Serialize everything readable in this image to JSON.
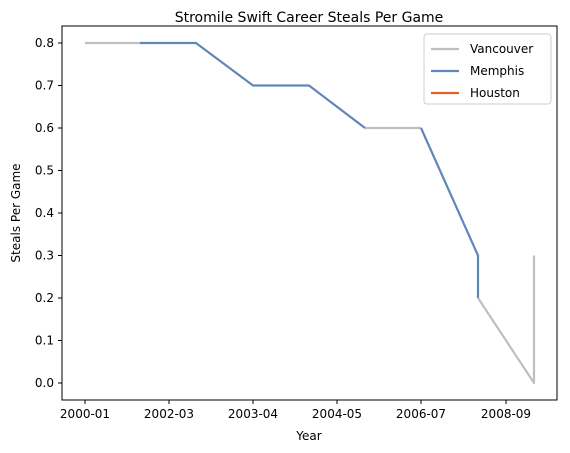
{
  "chart_data": {
    "type": "line",
    "title": "Stromile Swift Career Steals Per Game",
    "xlabel": "Year",
    "ylabel": "Steals Per Game",
    "x_ticks": [
      "2000-01",
      "2002-03",
      "2003-04",
      "2004-05",
      "2006-07",
      "2008-09"
    ],
    "y_ticks": [
      "0.0",
      "0.1",
      "0.2",
      "0.3",
      "0.4",
      "0.5",
      "0.6",
      "0.7",
      "0.8"
    ],
    "ylim": [
      -0.04,
      0.84
    ],
    "grid": false,
    "legend_position": "top-right",
    "series": [
      {
        "name": "Vancouver",
        "color": "#bfbfbf",
        "segments": [
          [
            [
              "2000-01",
              0.8
            ],
            [
              "2001-02",
              0.8
            ]
          ],
          [
            [
              "2004-05",
              0.6
            ],
            [
              "2005-06",
              0.6
            ]
          ],
          [
            [
              "2006-07 (b)",
              0.2
            ],
            [
              "2008-09",
              0.0
            ],
            [
              "2008-09",
              0.3
            ]
          ]
        ]
      },
      {
        "name": "Memphis",
        "color": "#5f87b8",
        "segments": [
          [
            [
              "2001-02",
              0.8
            ],
            [
              "2002-03",
              0.8
            ],
            [
              "2003-04",
              0.7
            ],
            [
              "2004-05 (a)",
              0.7
            ],
            [
              "2004-05",
              0.6
            ]
          ],
          [
            [
              "2005-06",
              0.6
            ],
            [
              "2006-07",
              0.3
            ],
            [
              "2006-07 (b)",
              0.2
            ]
          ]
        ]
      },
      {
        "name": "Houston",
        "color": "#e0622b",
        "segments": []
      }
    ]
  }
}
